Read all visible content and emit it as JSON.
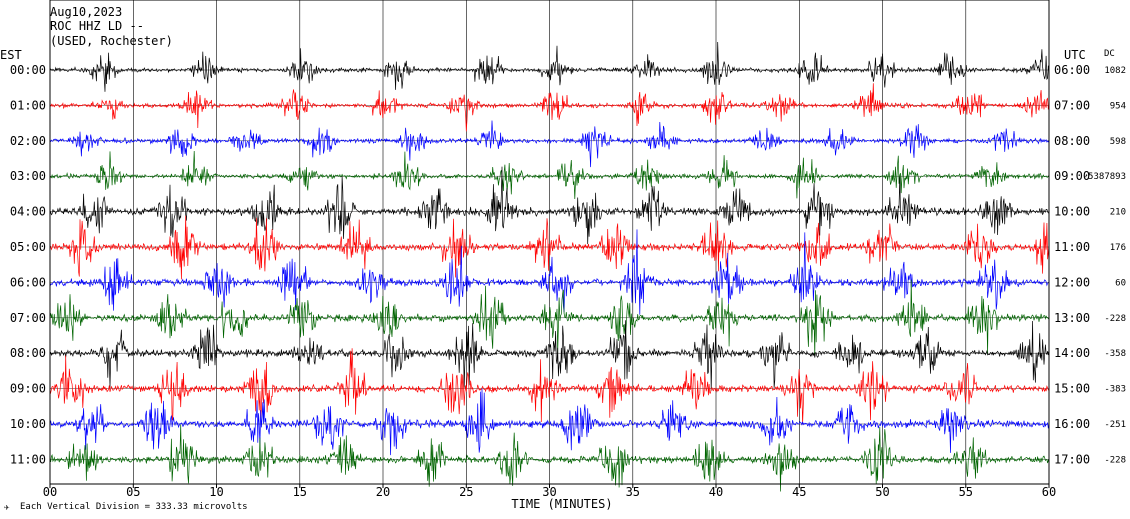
{
  "header": {
    "date": "Aug10,2023",
    "station": "ROC HHZ LD --",
    "location": "(USED, Rochester)"
  },
  "labels": {
    "left_timezone": "EST",
    "right_timezone": "UTC",
    "dc_heading": "DC",
    "x_axis_title": "TIME (MINUTES)",
    "scale_note": "Each Vertical Division = 333.33 microvolts"
  },
  "colors": {
    "black": "#000000",
    "red": "#ff0000",
    "blue": "#0000ff",
    "green": "#006400",
    "frame": "#000000"
  },
  "chart_data": {
    "type": "line",
    "title": "Aug10,2023",
    "xlabel": "TIME (MINUTES)",
    "ylabel": "",
    "xlim": [
      0,
      60
    ],
    "x_ticks": [
      0,
      5,
      10,
      15,
      20,
      25,
      30,
      35,
      40,
      45,
      50,
      55,
      60
    ],
    "x_tick_labels": [
      "00",
      "05",
      "10",
      "15",
      "20",
      "25",
      "30",
      "35",
      "40",
      "45",
      "50",
      "55",
      "60"
    ],
    "grid": true,
    "rows": [
      {
        "est": "00:00",
        "utc": "06:00",
        "dc": "1082",
        "color": "black"
      },
      {
        "est": "01:00",
        "utc": "07:00",
        "dc": "954",
        "color": "red"
      },
      {
        "est": "02:00",
        "utc": "08:00",
        "dc": "598",
        "color": "blue"
      },
      {
        "est": "03:00",
        "utc": "09:00",
        "dc": "-5387893",
        "color": "green"
      },
      {
        "est": "04:00",
        "utc": "10:00",
        "dc": "210",
        "color": "black"
      },
      {
        "est": "05:00",
        "utc": "11:00",
        "dc": "176",
        "color": "red"
      },
      {
        "est": "06:00",
        "utc": "12:00",
        "dc": "60",
        "color": "blue"
      },
      {
        "est": "07:00",
        "utc": "13:00",
        "dc": "-228",
        "color": "green"
      },
      {
        "est": "08:00",
        "utc": "14:00",
        "dc": "-358",
        "color": "black"
      },
      {
        "est": "09:00",
        "utc": "15:00",
        "dc": "-383",
        "color": "red"
      },
      {
        "est": "10:00",
        "utc": "16:00",
        "dc": "-251",
        "color": "blue"
      },
      {
        "est": "11:00",
        "utc": "17:00",
        "dc": "-228",
        "color": "green"
      }
    ]
  }
}
